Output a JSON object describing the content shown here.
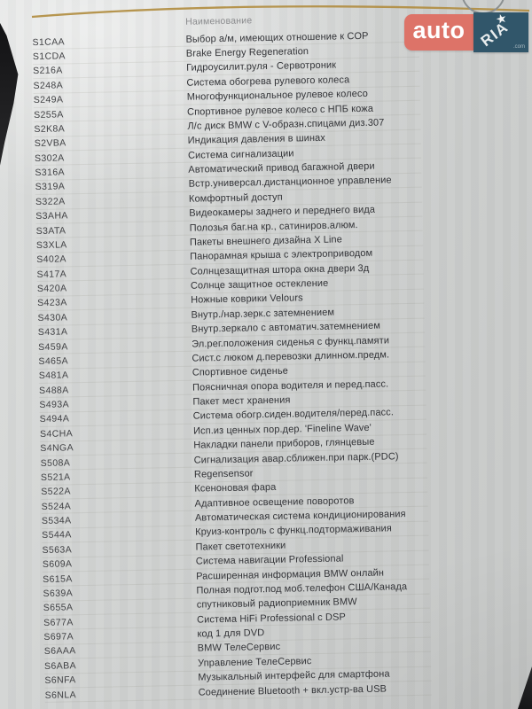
{
  "document": {
    "column_header": "Наименование",
    "rows": [
      {
        "code": "S1CAA",
        "name": "Выбор а/м, имеющих отношение к COP"
      },
      {
        "code": "S1CDA",
        "name": "Brake Energy Regeneration"
      },
      {
        "code": "S216A",
        "name": "Гидроусилит.руля - Сервотроник"
      },
      {
        "code": "S248A",
        "name": "Система обогрева рулевого колеса"
      },
      {
        "code": "S249A",
        "name": "Многофункциональное рулевое колесо"
      },
      {
        "code": "S255A",
        "name": "Спортивное рулевое колесо с НПБ кожа"
      },
      {
        "code": "S2K8A",
        "name": "Л/с диск BMW с V-образн.спицами диз.307"
      },
      {
        "code": "S2VBA",
        "name": "Индикация давления в шинах"
      },
      {
        "code": "S302A",
        "name": "Система сигнализации"
      },
      {
        "code": "S316A",
        "name": "Автоматический привод багажной двери"
      },
      {
        "code": "S319A",
        "name": "Встр.универсал.дистанционное управление"
      },
      {
        "code": "S322A",
        "name": "Комфортный доступ"
      },
      {
        "code": "S3AHA",
        "name": "Видеокамеры заднего и переднего вида"
      },
      {
        "code": "S3ATA",
        "name": "Полозья баг.на кр., сатиниров.алюм."
      },
      {
        "code": "S3XLA",
        "name": "Пакеты внешнего дизайна X Line"
      },
      {
        "code": "S402A",
        "name": "Панорамная крыша с электроприводом"
      },
      {
        "code": "S417A",
        "name": "Солнцезащитная штора окна двери 3д"
      },
      {
        "code": "S420A",
        "name": "Солнце защитное остекление"
      },
      {
        "code": "S423A",
        "name": "Ножные коврики Velours"
      },
      {
        "code": "S430A",
        "name": "Внутр./нар.зерк.с затемнением"
      },
      {
        "code": "S431A",
        "name": "Внутр.зеркало с автоматич.затемнением"
      },
      {
        "code": "S459A",
        "name": "Эл.рег.положения сиденья с функц.памяти"
      },
      {
        "code": "S465A",
        "name": "Сист.с люком д.перевозки длинном.предм."
      },
      {
        "code": "S481A",
        "name": "Спортивное сиденье"
      },
      {
        "code": "S488A",
        "name": "Поясничная опора водителя и перед.пасс."
      },
      {
        "code": "S493A",
        "name": "Пакет мест хранения"
      },
      {
        "code": "S494A",
        "name": "Система обогр.сиден.водителя/перед.пасс."
      },
      {
        "code": "S4CHA",
        "name": "Исп.из ценных пор.дер. 'Fineline Wave'"
      },
      {
        "code": "S4NGA",
        "name": "Накладки панели приборов, глянцевые"
      },
      {
        "code": "S508A",
        "name": "Сигнализация авар.сближен.при парк.(PDC)"
      },
      {
        "code": "S521A",
        "name": "Regensensor"
      },
      {
        "code": "S522A",
        "name": "Ксеноновая фара"
      },
      {
        "code": "S524A",
        "name": "Адаптивное освещение поворотов"
      },
      {
        "code": "S534A",
        "name": "Автоматическая система кондиционирования"
      },
      {
        "code": "S544A",
        "name": "Круиз-контроль с функц.подтормаживания"
      },
      {
        "code": "S563A",
        "name": "Пакет светотехники"
      },
      {
        "code": "S609A",
        "name": "Система навигации Professional"
      },
      {
        "code": "S615A",
        "name": "Расширенная информация BMW онлайн"
      },
      {
        "code": "S639A",
        "name": "Полная подгот.под моб.телефон США/Канада"
      },
      {
        "code": "S655A",
        "name": "спутниковый радиоприемник BMW"
      },
      {
        "code": "S677A",
        "name": "Система HiFi Professional с DSP"
      },
      {
        "code": "S697A",
        "name": "код 1 для DVD"
      },
      {
        "code": "S6AAA",
        "name": "BMW ТелеСервис"
      },
      {
        "code": "S6ABA",
        "name": "Управление ТелеСервис"
      },
      {
        "code": "S6NFA",
        "name": "Музыкальный интерфейс для смартфона"
      },
      {
        "code": "S6NLA",
        "name": "Соединение Bluetooth + вкл.устр-ва USB"
      }
    ]
  },
  "watermark": {
    "auto_label": "auto",
    "ria_label": "RIA",
    "domain_label": ".com",
    "star_icon": "★",
    "colors": {
      "auto_bg": "#dd7368",
      "ria_bg": "#31566a"
    }
  },
  "decorations": {
    "accent_line_color": "#b08c3e"
  }
}
